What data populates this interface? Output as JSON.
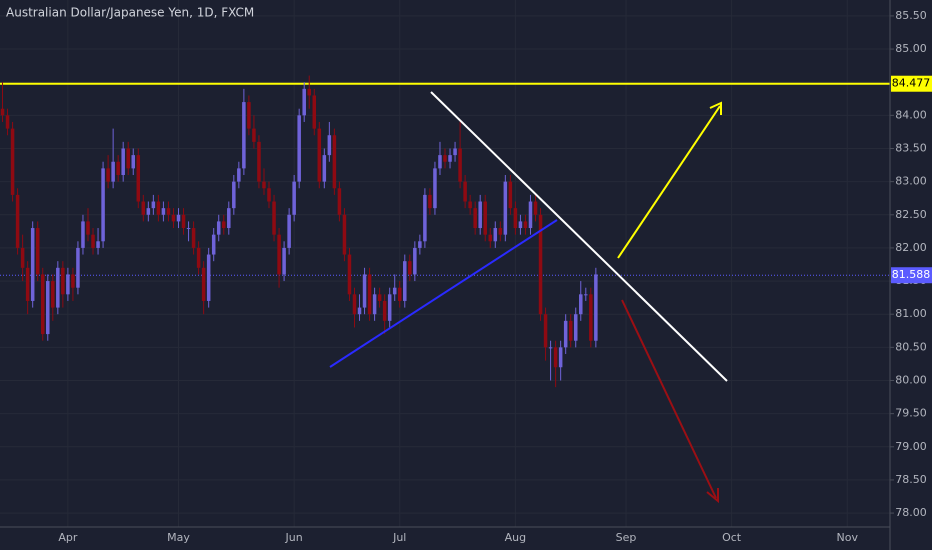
{
  "chart_data": {
    "type": "candlestick",
    "title": "Australian Dollar/Japanese Yen, 1D, FXCM",
    "up_color": "#6f63d9",
    "down_color": "#8e0a12",
    "background": "#1c2030",
    "grid": true,
    "ylim": [
      77.79,
      85.74
    ],
    "yticks": [
      {
        "value": 78,
        "label": "78.00"
      },
      {
        "value": 78.5,
        "label": "78.50"
      },
      {
        "value": 79,
        "label": "79.00"
      },
      {
        "value": 79.5,
        "label": "79.50"
      },
      {
        "value": 80,
        "label": "80.00"
      },
      {
        "value": 80.5,
        "label": "80.50"
      },
      {
        "value": 81,
        "label": "81.00"
      },
      {
        "value": 81.5,
        "label": "81.50"
      },
      {
        "value": 82,
        "label": "82.00"
      },
      {
        "value": 82.5,
        "label": "82.50"
      },
      {
        "value": 83,
        "label": "83.00"
      },
      {
        "value": 83.5,
        "label": "83.50"
      },
      {
        "value": 84,
        "label": "84.00"
      },
      {
        "value": 84.5,
        "label": "84.50"
      },
      {
        "value": 85,
        "label": "85.00"
      },
      {
        "value": 85.5,
        "label": "85.50"
      }
    ],
    "levels": [
      {
        "value": 84.477,
        "color": "#ffff00",
        "style": "solid"
      },
      {
        "value": 81.588,
        "color": "#5b5bff",
        "style": "dotted"
      }
    ],
    "categories": [
      null,
      null,
      null,
      null,
      null,
      null,
      null,
      null,
      null,
      null,
      null,
      null,
      null,
      "Apr",
      null,
      null,
      null,
      null,
      null,
      null,
      null,
      null,
      null,
      null,
      null,
      null,
      null,
      null,
      null,
      null,
      null,
      null,
      null,
      null,
      null,
      "May",
      null,
      null,
      null,
      null,
      null,
      null,
      null,
      null,
      null,
      null,
      null,
      null,
      null,
      null,
      null,
      null,
      null,
      null,
      null,
      null,
      null,
      null,
      "Jun",
      null,
      null,
      null,
      null,
      null,
      null,
      null,
      null,
      null,
      null,
      null,
      null,
      null,
      null,
      null,
      null,
      null,
      null,
      null,
      null,
      "Jul",
      null,
      null,
      null,
      null,
      null,
      null,
      null,
      null,
      null,
      null,
      null,
      null,
      null,
      null,
      null,
      null,
      null,
      null,
      null,
      null,
      null,
      null,
      "Aug",
      null,
      null,
      null,
      null,
      null,
      null,
      null,
      null,
      null,
      null,
      null,
      null,
      null,
      null,
      null,
      null,
      null,
      null,
      null,
      null,
      null,
      "Sep",
      null,
      null,
      null,
      null,
      null,
      null,
      null,
      null,
      null,
      null,
      null,
      null,
      null,
      null,
      null,
      null,
      null,
      null,
      null,
      null,
      "Oct",
      null,
      null,
      null,
      null,
      null,
      null,
      null,
      null,
      null,
      null,
      null,
      null,
      null,
      null,
      null,
      null,
      null,
      null,
      null,
      null,
      null,
      null,
      "Nov",
      null,
      null,
      null,
      null,
      null,
      null,
      null,
      null
    ],
    "ohlc": [
      [
        84.1,
        84.5,
        83.9,
        84.0
      ],
      [
        84.0,
        84.1,
        83.7,
        83.8
      ],
      [
        83.8,
        83.9,
        82.7,
        82.8
      ],
      [
        82.8,
        82.9,
        81.9,
        82.0
      ],
      [
        82.0,
        82.2,
        81.5,
        81.7
      ],
      [
        81.7,
        81.8,
        81.0,
        81.2
      ],
      [
        81.2,
        82.4,
        81.1,
        82.3
      ],
      [
        82.3,
        82.4,
        81.5,
        81.6
      ],
      [
        81.6,
        81.7,
        80.6,
        80.7
      ],
      [
        80.7,
        81.6,
        80.6,
        81.5
      ],
      [
        81.5,
        81.6,
        80.9,
        81.1
      ],
      [
        81.1,
        81.8,
        81.0,
        81.7
      ],
      [
        81.7,
        81.8,
        81.1,
        81.3
      ],
      [
        81.3,
        81.7,
        81.2,
        81.6
      ],
      [
        81.6,
        81.7,
        81.2,
        81.4
      ],
      [
        81.4,
        82.1,
        81.3,
        82.0
      ],
      [
        82.0,
        82.5,
        81.9,
        82.4
      ],
      [
        82.4,
        82.6,
        82.1,
        82.2
      ],
      [
        82.2,
        82.3,
        81.9,
        82.0
      ],
      [
        82.0,
        82.3,
        81.9,
        82.1
      ],
      [
        82.1,
        83.3,
        82.0,
        83.2
      ],
      [
        83.2,
        83.4,
        82.9,
        83.0
      ],
      [
        83.0,
        83.8,
        82.9,
        83.3
      ],
      [
        83.3,
        83.4,
        83.0,
        83.1
      ],
      [
        83.1,
        83.6,
        83.0,
        83.5
      ],
      [
        83.5,
        83.6,
        83.1,
        83.2
      ],
      [
        83.2,
        83.5,
        83.1,
        83.4
      ],
      [
        83.4,
        83.5,
        82.6,
        82.7
      ],
      [
        82.7,
        82.8,
        82.4,
        82.5
      ],
      [
        82.5,
        82.7,
        82.4,
        82.6
      ],
      [
        82.6,
        82.8,
        82.5,
        82.7
      ],
      [
        82.7,
        82.8,
        82.4,
        82.5
      ],
      [
        82.5,
        82.7,
        82.4,
        82.6
      ],
      [
        82.6,
        82.7,
        82.4,
        82.5
      ],
      [
        82.5,
        82.6,
        82.3,
        82.4
      ],
      [
        82.4,
        82.6,
        82.3,
        82.5
      ],
      [
        82.5,
        82.6,
        82.2,
        82.3
      ],
      [
        82.3,
        82.4,
        82.1,
        82.3
      ],
      [
        82.3,
        82.4,
        81.9,
        82.0
      ],
      [
        82.0,
        82.1,
        81.6,
        81.7
      ],
      [
        81.7,
        81.8,
        81.0,
        81.2
      ],
      [
        81.2,
        82.0,
        81.1,
        81.9
      ],
      [
        81.9,
        82.3,
        81.8,
        82.2
      ],
      [
        82.2,
        82.5,
        82.1,
        82.4
      ],
      [
        82.4,
        82.5,
        82.2,
        82.3
      ],
      [
        82.3,
        82.7,
        82.2,
        82.6
      ],
      [
        82.6,
        83.1,
        82.5,
        83.0
      ],
      [
        83.0,
        83.3,
        82.9,
        83.2
      ],
      [
        83.2,
        84.4,
        83.1,
        84.2
      ],
      [
        84.2,
        84.3,
        83.7,
        83.8
      ],
      [
        83.8,
        84.0,
        83.5,
        83.6
      ],
      [
        83.6,
        83.7,
        82.9,
        83.0
      ],
      [
        83.0,
        83.2,
        82.8,
        82.9
      ],
      [
        82.9,
        83.0,
        82.6,
        82.7
      ],
      [
        82.7,
        82.8,
        82.1,
        82.2
      ],
      [
        82.2,
        82.3,
        81.4,
        81.6
      ],
      [
        81.6,
        82.1,
        81.5,
        82.0
      ],
      [
        82.0,
        82.6,
        81.9,
        82.5
      ],
      [
        82.5,
        83.1,
        82.4,
        83.0
      ],
      [
        83.0,
        84.1,
        82.9,
        84.0
      ],
      [
        84.0,
        84.5,
        83.9,
        84.4
      ],
      [
        84.4,
        84.6,
        84.1,
        84.3
      ],
      [
        84.3,
        84.4,
        83.7,
        83.8
      ],
      [
        83.8,
        83.9,
        82.9,
        83.0
      ],
      [
        83.0,
        83.5,
        82.9,
        83.4
      ],
      [
        83.4,
        83.9,
        83.3,
        83.7
      ],
      [
        83.7,
        83.8,
        82.8,
        82.9
      ],
      [
        82.9,
        83.0,
        82.4,
        82.5
      ],
      [
        82.5,
        82.6,
        81.8,
        81.9
      ],
      [
        81.9,
        82.0,
        81.2,
        81.3
      ],
      [
        81.3,
        81.4,
        80.8,
        81.0
      ],
      [
        81.0,
        81.3,
        80.9,
        81.1
      ],
      [
        81.1,
        81.7,
        81.0,
        81.6
      ],
      [
        81.6,
        81.7,
        80.9,
        81.0
      ],
      [
        81.0,
        81.4,
        80.9,
        81.3
      ],
      [
        81.3,
        81.4,
        81.1,
        81.2
      ],
      [
        81.2,
        81.3,
        80.7,
        80.9
      ],
      [
        80.9,
        81.4,
        80.8,
        81.3
      ],
      [
        81.3,
        81.6,
        81.2,
        81.4
      ],
      [
        81.4,
        81.5,
        81.1,
        81.2
      ],
      [
        81.2,
        81.9,
        81.1,
        81.8
      ],
      [
        81.8,
        81.9,
        81.5,
        81.6
      ],
      [
        81.6,
        82.1,
        81.5,
        82.0
      ],
      [
        82.0,
        82.2,
        81.9,
        82.1
      ],
      [
        82.1,
        82.9,
        82.0,
        82.8
      ],
      [
        82.8,
        82.9,
        82.5,
        82.6
      ],
      [
        82.6,
        83.3,
        82.5,
        83.2
      ],
      [
        83.2,
        83.6,
        83.1,
        83.4
      ],
      [
        83.4,
        83.5,
        83.2,
        83.3
      ],
      [
        83.3,
        83.5,
        83.2,
        83.4
      ],
      [
        83.4,
        83.6,
        83.3,
        83.5
      ],
      [
        83.5,
        83.9,
        82.9,
        83.0
      ],
      [
        83.0,
        83.1,
        82.6,
        82.7
      ],
      [
        82.7,
        82.8,
        82.5,
        82.6
      ],
      [
        82.6,
        82.7,
        82.2,
        82.3
      ],
      [
        82.3,
        82.8,
        82.2,
        82.7
      ],
      [
        82.7,
        82.8,
        82.1,
        82.2
      ],
      [
        82.2,
        82.3,
        82.0,
        82.1
      ],
      [
        82.1,
        82.4,
        82.0,
        82.3
      ],
      [
        82.3,
        82.4,
        82.1,
        82.2
      ],
      [
        82.2,
        83.1,
        82.1,
        83.0
      ],
      [
        83.0,
        83.1,
        82.5,
        82.6
      ],
      [
        82.6,
        82.7,
        82.2,
        82.3
      ],
      [
        82.3,
        82.5,
        82.2,
        82.4
      ],
      [
        82.4,
        82.5,
        82.2,
        82.3
      ],
      [
        82.3,
        82.8,
        82.2,
        82.7
      ],
      [
        82.7,
        82.8,
        82.4,
        82.5
      ],
      [
        82.5,
        82.6,
        80.9,
        81.0
      ],
      [
        81.0,
        81.1,
        80.3,
        80.5
      ],
      [
        80.5,
        80.6,
        80.0,
        80.5
      ],
      [
        80.5,
        80.6,
        79.9,
        80.2
      ],
      [
        80.2,
        80.6,
        80.0,
        80.5
      ],
      [
        80.5,
        81.0,
        80.4,
        80.9
      ],
      [
        80.9,
        81.0,
        80.5,
        80.6
      ],
      [
        80.6,
        81.1,
        80.5,
        81.0
      ],
      [
        81.0,
        81.5,
        80.9,
        81.3
      ],
      [
        81.3,
        81.4,
        81.2,
        81.3
      ],
      [
        81.3,
        81.4,
        80.5,
        80.6
      ],
      [
        80.6,
        81.7,
        80.5,
        81.6
      ],
      null,
      null,
      null,
      null,
      null,
      null,
      null,
      null,
      null,
      null,
      null,
      null,
      null,
      null,
      null,
      null,
      null,
      null,
      null,
      null,
      null,
      null,
      null,
      null,
      null,
      null,
      null,
      null,
      null,
      null,
      null,
      null,
      null,
      null,
      null,
      null,
      null,
      null,
      null,
      null,
      null,
      null,
      null,
      null,
      null,
      null,
      null,
      null,
      null,
      null,
      null,
      null,
      null,
      null,
      null,
      null,
      null
    ]
  }
}
